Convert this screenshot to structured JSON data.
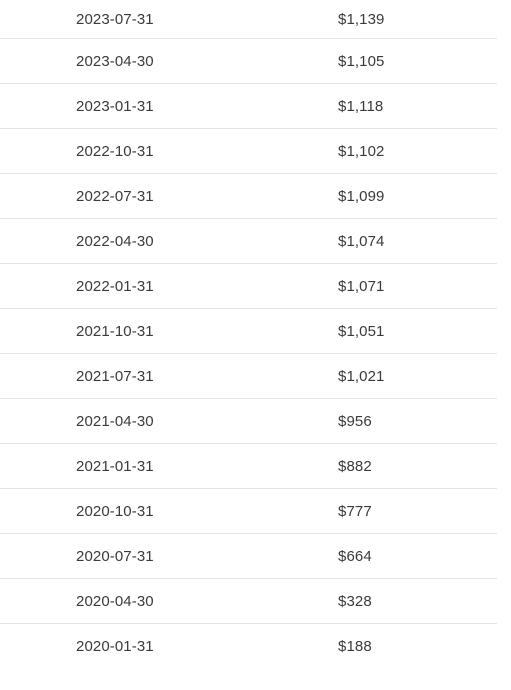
{
  "table": {
    "rows": [
      {
        "date": "2023-07-31",
        "value": "$1,139"
      },
      {
        "date": "2023-04-30",
        "value": "$1,105"
      },
      {
        "date": "2023-01-31",
        "value": "$1,118"
      },
      {
        "date": "2022-10-31",
        "value": "$1,102"
      },
      {
        "date": "2022-07-31",
        "value": "$1,099"
      },
      {
        "date": "2022-04-30",
        "value": "$1,074"
      },
      {
        "date": "2022-01-31",
        "value": "$1,071"
      },
      {
        "date": "2021-10-31",
        "value": "$1,051"
      },
      {
        "date": "2021-07-31",
        "value": "$1,021"
      },
      {
        "date": "2021-04-30",
        "value": "$956"
      },
      {
        "date": "2021-01-31",
        "value": "$882"
      },
      {
        "date": "2020-10-31",
        "value": "$777"
      },
      {
        "date": "2020-07-31",
        "value": "$664"
      },
      {
        "date": "2020-04-30",
        "value": "$328"
      },
      {
        "date": "2020-01-31",
        "value": "$188"
      }
    ]
  }
}
